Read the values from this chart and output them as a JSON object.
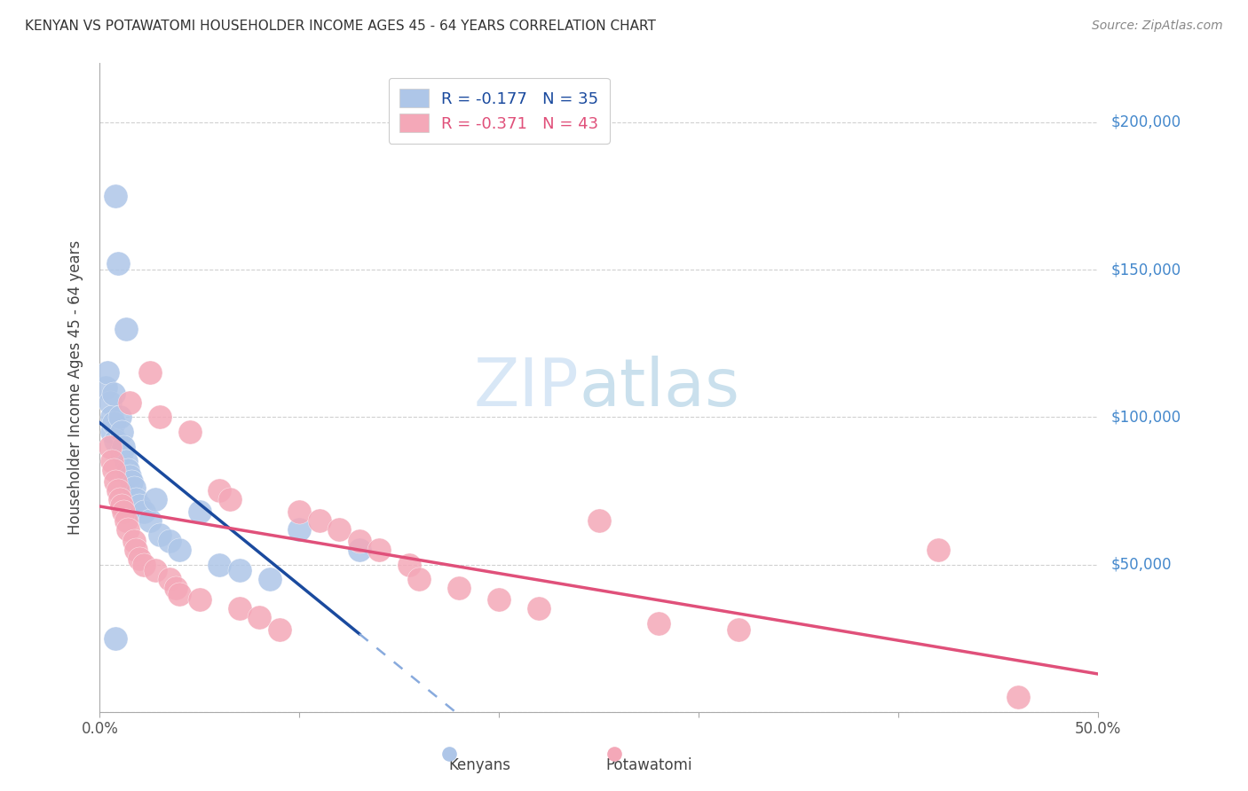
{
  "title": "KENYAN VS POTAWATOMI HOUSEHOLDER INCOME AGES 45 - 64 YEARS CORRELATION CHART",
  "source": "Source: ZipAtlas.com",
  "ylabel": "Householder Income Ages 45 - 64 years",
  "xlim": [
    0.0,
    0.5
  ],
  "ylim": [
    0,
    220000
  ],
  "background_color": "#ffffff",
  "grid_color": "#d0d0d0",
  "kenyan_color": "#aec6e8",
  "potawatomi_color": "#f4a8b8",
  "kenyan_line_color": "#1a4a9e",
  "potawatomi_line_color": "#e0507a",
  "kenyan_dashed_color": "#88aadd",
  "right_axis_label_color": "#4488cc",
  "kenyan_R": "-0.177",
  "kenyan_N": "35",
  "potawatomi_R": "-0.371",
  "potawatomi_N": "43",
  "kenyan_scatter_x": [
    0.003,
    0.004,
    0.005,
    0.006,
    0.006,
    0.007,
    0.007,
    0.008,
    0.008,
    0.009,
    0.01,
    0.011,
    0.011,
    0.012,
    0.013,
    0.013,
    0.014,
    0.015,
    0.016,
    0.017,
    0.018,
    0.02,
    0.022,
    0.025,
    0.028,
    0.03,
    0.035,
    0.04,
    0.05,
    0.06,
    0.07,
    0.085,
    0.1,
    0.13,
    0.008
  ],
  "kenyan_scatter_y": [
    110000,
    115000,
    105000,
    100000,
    95000,
    108000,
    98000,
    175000,
    92000,
    152000,
    100000,
    95000,
    88000,
    90000,
    85000,
    130000,
    82000,
    80000,
    78000,
    76000,
    72000,
    70000,
    68000,
    65000,
    72000,
    60000,
    58000,
    55000,
    68000,
    50000,
    48000,
    45000,
    62000,
    55000,
    25000
  ],
  "potawatomi_scatter_x": [
    0.005,
    0.006,
    0.007,
    0.008,
    0.009,
    0.01,
    0.011,
    0.012,
    0.013,
    0.014,
    0.015,
    0.017,
    0.018,
    0.02,
    0.022,
    0.025,
    0.028,
    0.03,
    0.035,
    0.038,
    0.04,
    0.045,
    0.05,
    0.06,
    0.065,
    0.07,
    0.08,
    0.09,
    0.1,
    0.11,
    0.12,
    0.13,
    0.14,
    0.155,
    0.16,
    0.18,
    0.2,
    0.22,
    0.25,
    0.28,
    0.32,
    0.42,
    0.46
  ],
  "potawatomi_scatter_y": [
    90000,
    85000,
    82000,
    78000,
    75000,
    72000,
    70000,
    68000,
    65000,
    62000,
    105000,
    58000,
    55000,
    52000,
    50000,
    115000,
    48000,
    100000,
    45000,
    42000,
    40000,
    95000,
    38000,
    75000,
    72000,
    35000,
    32000,
    28000,
    68000,
    65000,
    62000,
    58000,
    55000,
    50000,
    45000,
    42000,
    38000,
    35000,
    65000,
    30000,
    28000,
    55000,
    5000
  ]
}
